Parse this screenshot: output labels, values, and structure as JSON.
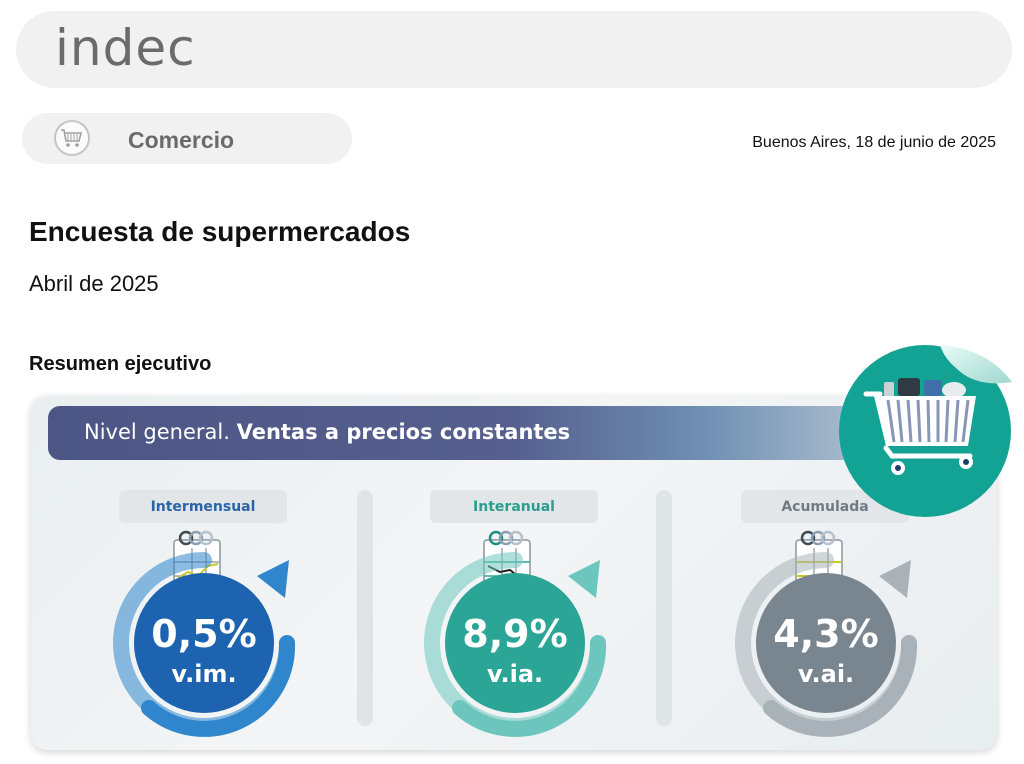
{
  "header": {
    "logo_text": "indec"
  },
  "section": {
    "label": "Comercio",
    "icon": "shopping-cart-icon"
  },
  "date": "Buenos Aires, 18 de junio de 2025",
  "document": {
    "title": "Encuesta de supermercados",
    "period": "Abril de 2025",
    "summary_title": "Resumen ejecutivo"
  },
  "card": {
    "banner_prefix": "Nivel general.",
    "banner_strong": "Ventas a precios constantes",
    "indicators": [
      {
        "label": "Intermensual",
        "value": "0,5%",
        "unit": "v.im.",
        "color": "#1d63b0",
        "label_color": "#2a63a8",
        "arrow_color": "#2f86cc"
      },
      {
        "label": "Interanual",
        "value": "8,9%",
        "unit": "v.ia.",
        "color": "#2aa596",
        "label_color": "#2a9d8f",
        "arrow_color": "#6dc6bd"
      },
      {
        "label": "Acumulada",
        "value": "4,3%",
        "unit": "v.ai.",
        "color": "#7a868f",
        "label_color": "#6f7b85",
        "arrow_color": "#a9b2b8"
      }
    ]
  },
  "colors": {
    "badge_teal": "#12a394",
    "banner": "#4c5584",
    "logo_gray": "#6b6b6b"
  }
}
